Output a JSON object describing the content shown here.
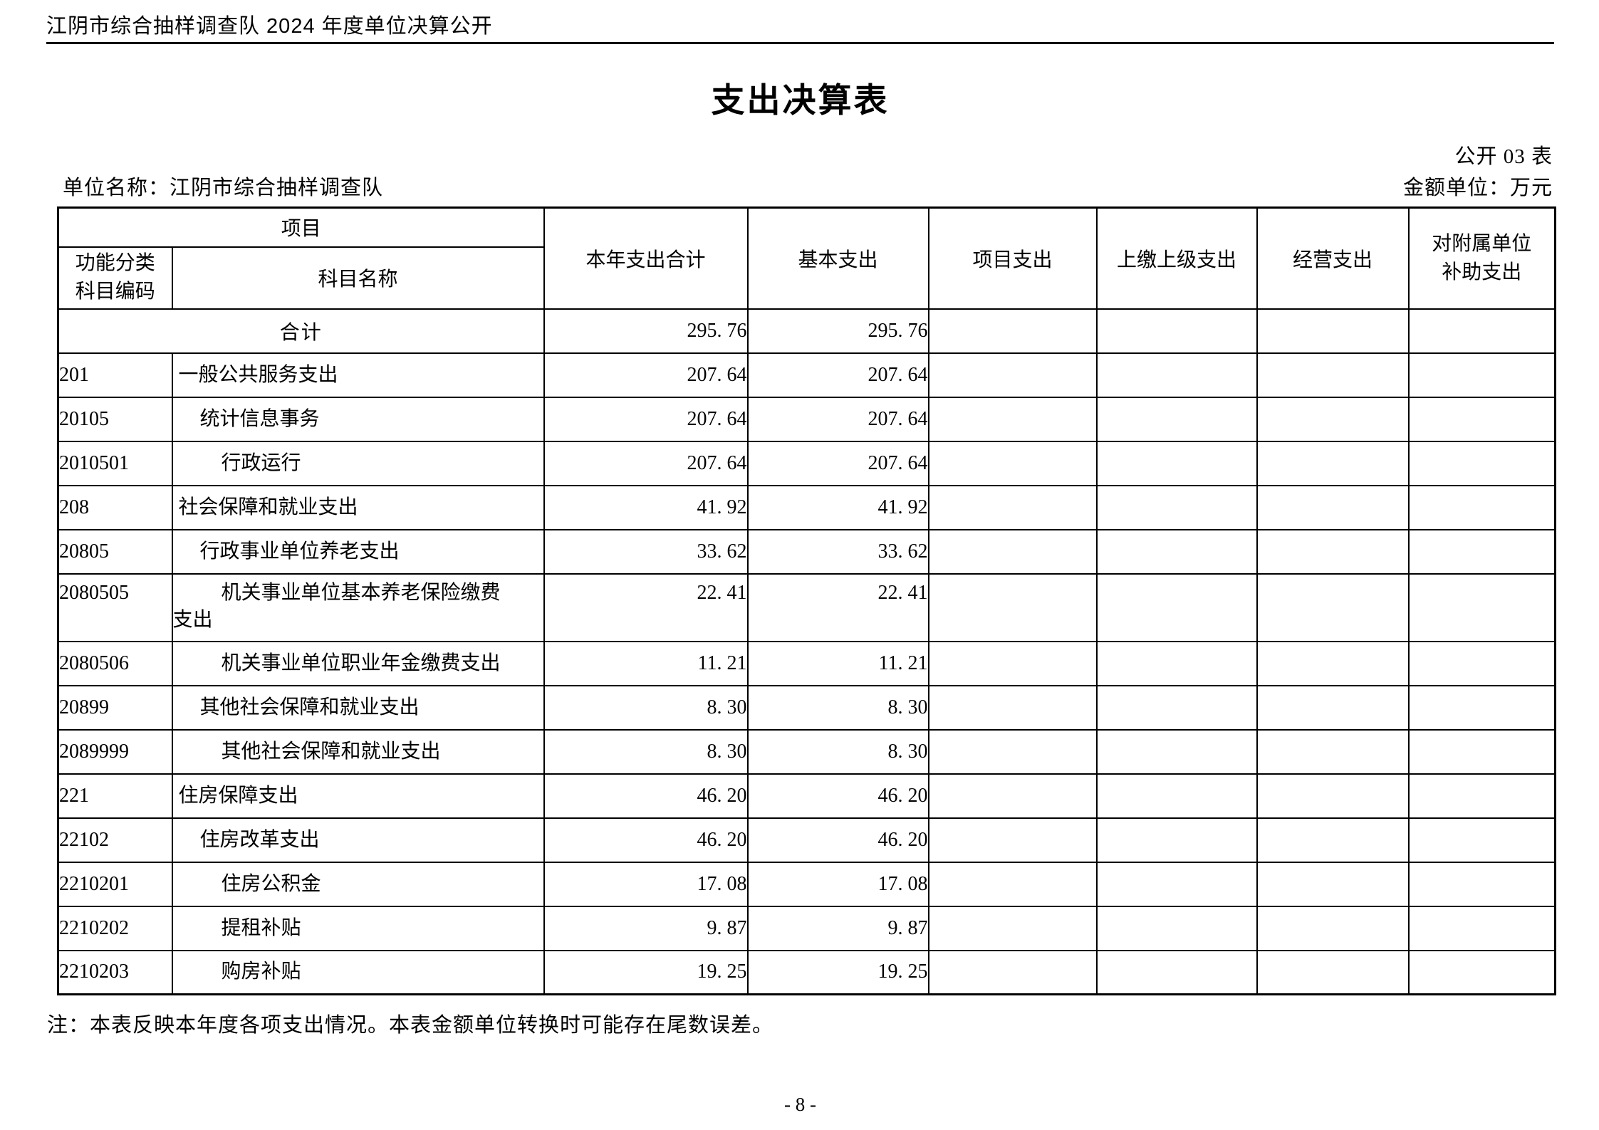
{
  "page": {
    "header_title": "江阴市综合抽样调查队 2024 年度单位决算公开",
    "doc_title": "支出决算表",
    "table_code": "公开 03 表",
    "unit_name": "单位名称：江阴市综合抽样调查队",
    "amount_unit": "金额单位：万元",
    "note": "注：本表反映本年度各项支出情况。本表金额单位转换时可能存在尾数误差。",
    "page_number": "- 8 -"
  },
  "table": {
    "header": {
      "project": "项目",
      "code_label": "功能分类科目编码",
      "code_lines": [
        "功能分类",
        "科目编码"
      ],
      "subject_name": "科目名称",
      "cols": [
        "本年支出合计",
        "基本支出",
        "项目支出",
        "上缴上级支出",
        "经营支出",
        "对附属单位补助支出"
      ],
      "subsidy_lines": [
        "对附属单位",
        "补助支出"
      ]
    },
    "total_row": {
      "label": "合计",
      "values": [
        "295.76",
        "295.76",
        "",
        "",
        "",
        ""
      ]
    },
    "rows": [
      {
        "code": "201",
        "name": "一般公共服务支出",
        "indent": 1,
        "values": [
          "207.64",
          "207.64",
          "",
          "",
          "",
          ""
        ]
      },
      {
        "code": "20105",
        "name": "统计信息事务",
        "indent": 2,
        "values": [
          "207.64",
          "207.64",
          "",
          "",
          "",
          ""
        ]
      },
      {
        "code": "2010501",
        "name": "行政运行",
        "indent": 3,
        "values": [
          "207.64",
          "207.64",
          "",
          "",
          "",
          ""
        ]
      },
      {
        "code": "208",
        "name": "社会保障和就业支出",
        "indent": 1,
        "values": [
          "41.92",
          "41.92",
          "",
          "",
          "",
          ""
        ]
      },
      {
        "code": "20805",
        "name": "行政事业单位养老支出",
        "indent": 2,
        "values": [
          "33.62",
          "33.62",
          "",
          "",
          "",
          ""
        ]
      },
      {
        "code": "2080505",
        "name": "机关事业单位基本养老保险缴费支出",
        "name_line1": "机关事业单位基本养老保险缴费",
        "name_line2": "支出",
        "indent": 3,
        "values": [
          "22.41",
          "22.41",
          "",
          "",
          "",
          ""
        ]
      },
      {
        "code": "2080506",
        "name": "机关事业单位职业年金缴费支出",
        "indent": 3,
        "values": [
          "11.21",
          "11.21",
          "",
          "",
          "",
          ""
        ]
      },
      {
        "code": "20899",
        "name": "其他社会保障和就业支出",
        "indent": 2,
        "values": [
          "8.30",
          "8.30",
          "",
          "",
          "",
          ""
        ]
      },
      {
        "code": "2089999",
        "name": "其他社会保障和就业支出",
        "indent": 3,
        "values": [
          "8.30",
          "8.30",
          "",
          "",
          "",
          ""
        ]
      },
      {
        "code": "221",
        "name": "住房保障支出",
        "indent": 1,
        "values": [
          "46.20",
          "46.20",
          "",
          "",
          "",
          ""
        ]
      },
      {
        "code": "22102",
        "name": "住房改革支出",
        "indent": 2,
        "values": [
          "46.20",
          "46.20",
          "",
          "",
          "",
          ""
        ]
      },
      {
        "code": "2210201",
        "name": "住房公积金",
        "indent": 3,
        "values": [
          "17.08",
          "17.08",
          "",
          "",
          "",
          ""
        ]
      },
      {
        "code": "2210202",
        "name": "提租补贴",
        "indent": 3,
        "values": [
          "9.87",
          "9.87",
          "",
          "",
          "",
          ""
        ]
      },
      {
        "code": "2210203",
        "name": "购房补贴",
        "indent": 3,
        "values": [
          "19.25",
          "19.25",
          "",
          "",
          "",
          ""
        ]
      }
    ]
  }
}
